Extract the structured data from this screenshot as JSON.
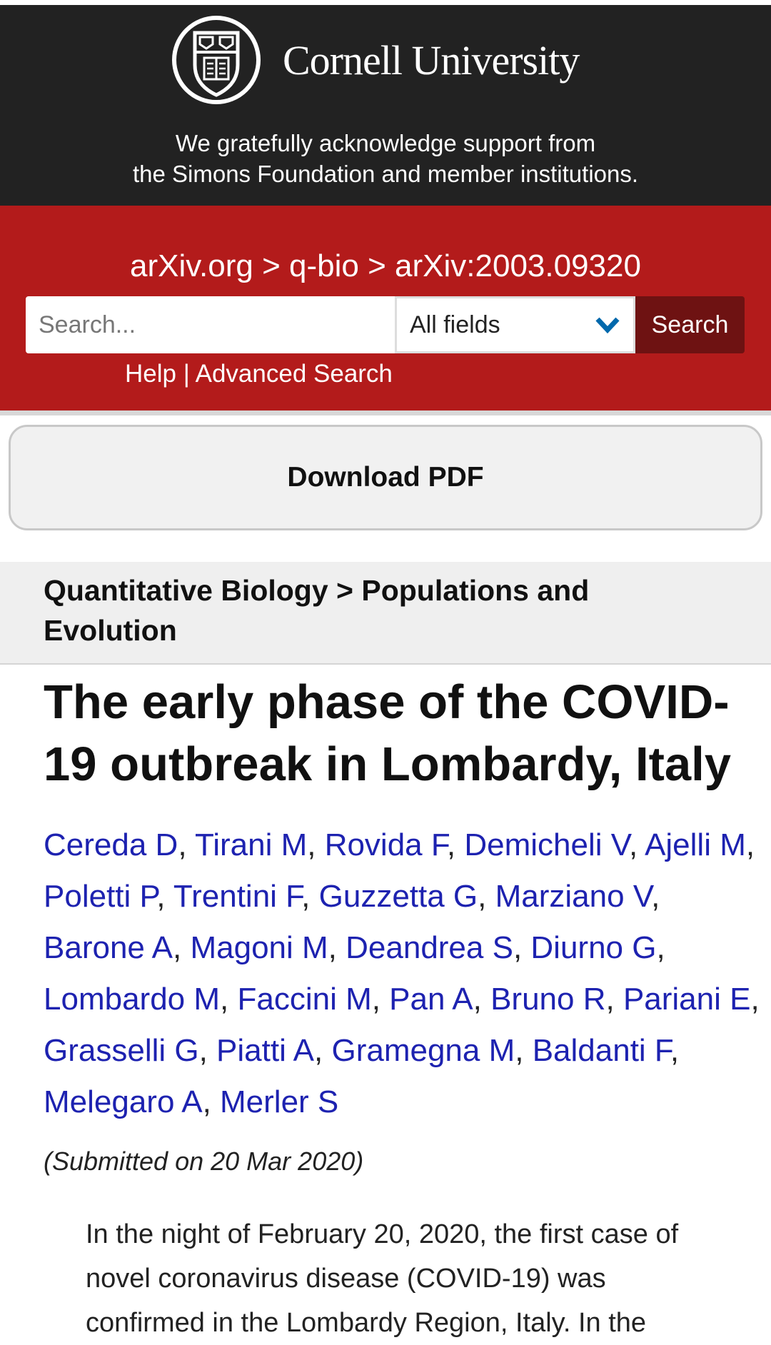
{
  "header": {
    "logo_text": "Cornell University",
    "acknowledgement_line1": "We gratefully acknowledge support from",
    "acknowledgement_line2": "the Simons Foundation and member institutions."
  },
  "breadcrumb": {
    "site": "arXiv.org",
    "sep": ">",
    "category": "q-bio",
    "paper": "arXiv:2003.09320"
  },
  "search": {
    "placeholder": "Search...",
    "field_selected": "All fields",
    "button_label": "Search",
    "help_label": "Help",
    "divider": "|",
    "advanced_label": "Advanced Search",
    "chevron_color": "#0068ac"
  },
  "download_label": "Download PDF",
  "subject": "Quantitative Biology > Populations and Evolution",
  "title": "The early phase of the COVID-19 outbreak in Lombardy, Italy",
  "authors": [
    "Cereda D",
    "Tirani M",
    "Rovida F",
    "Demicheli V",
    "Ajelli M",
    "Poletti P",
    "Trentini F",
    "Guzzetta G",
    "Marziano V",
    "Barone A",
    "Magoni M",
    "Deandrea S",
    "Diurno G",
    "Lombardo M",
    "Faccini M",
    "Pan A",
    "Bruno R",
    "Pariani E",
    "Grasselli G",
    "Piatti A",
    "Gramegna M",
    "Baldanti F",
    "Melegaro A",
    "Merler S"
  ],
  "submitted": "(Submitted on 20 Mar 2020)",
  "abstract": "In the night of February 20, 2020, the first case of novel coronavirus disease (COVID-19) was confirmed in the Lombardy Region, Italy. In the",
  "colors": {
    "header_dark": "#222222",
    "arxiv_red": "#b31b1b",
    "search_button": "#6e1212",
    "author_link": "#1d22b0"
  }
}
